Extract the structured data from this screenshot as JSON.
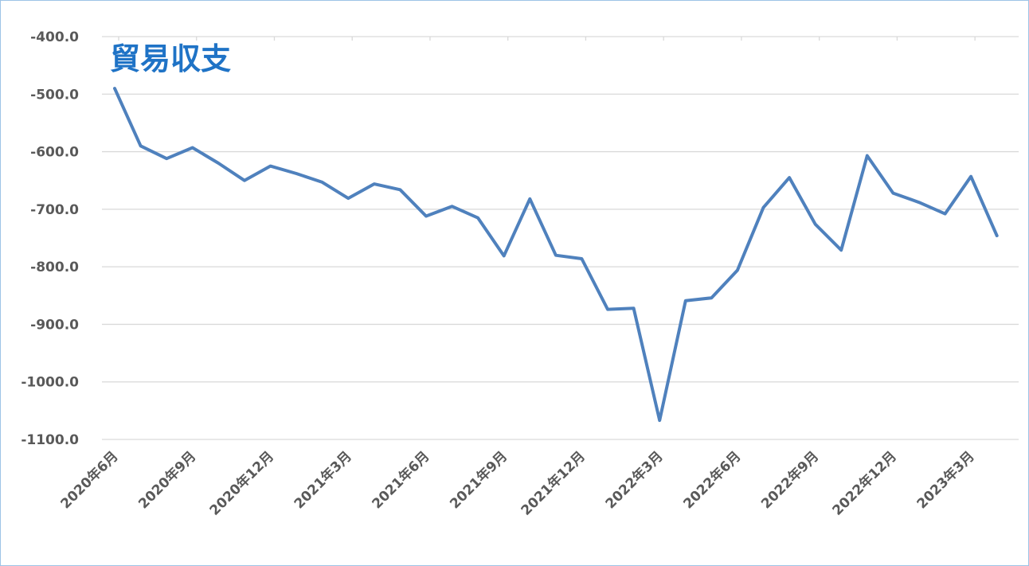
{
  "chart_data": {
    "type": "line",
    "title": "貿易収支",
    "xlabel": "",
    "ylabel": "",
    "ylim": [
      -1100.0,
      -400.0
    ],
    "y_ticks": [
      "-400.0",
      "-500.0",
      "-600.0",
      "-700.0",
      "-800.0",
      "-900.0",
      "-1000.0",
      "-1100.0"
    ],
    "x_tick_labels": [
      "2020年6月",
      "2020年9月",
      "2020年12月",
      "2021年3月",
      "2021年6月",
      "2021年9月",
      "2021年12月",
      "2022年3月",
      "2022年6月",
      "2022年9月",
      "2022年12月",
      "2023年3月"
    ],
    "x": [
      "2020年6月",
      "2020年7月",
      "2020年8月",
      "2020年9月",
      "2020年10月",
      "2020年11月",
      "2020年12月",
      "2021年1月",
      "2021年2月",
      "2021年3月",
      "2021年4月",
      "2021年5月",
      "2021年6月",
      "2021年7月",
      "2021年8月",
      "2021年9月",
      "2021年10月",
      "2021年11月",
      "2021年12月",
      "2022年1月",
      "2022年2月",
      "2022年3月",
      "2022年4月",
      "2022年5月",
      "2022年6月",
      "2022年7月",
      "2022年8月",
      "2022年9月",
      "2022年10月",
      "2022年11月",
      "2022年12月",
      "2023年1月",
      "2023年2月",
      "2023年3月",
      "2023年4月"
    ],
    "series": [
      {
        "values": [
          -490,
          -590,
          -612,
          -593,
          -620,
          -650,
          -625,
          -638,
          -653,
          -681,
          -656,
          -666,
          -712,
          -695,
          -715,
          -781,
          -682,
          -780,
          -786,
          -874,
          -872,
          -1067,
          -859,
          -854,
          -806,
          -697,
          -645,
          -726,
          -771,
          -607,
          -672,
          -688,
          -708,
          -643,
          -746
        ],
        "color": "#4f81bd"
      }
    ],
    "grid": true,
    "legend": "none"
  }
}
